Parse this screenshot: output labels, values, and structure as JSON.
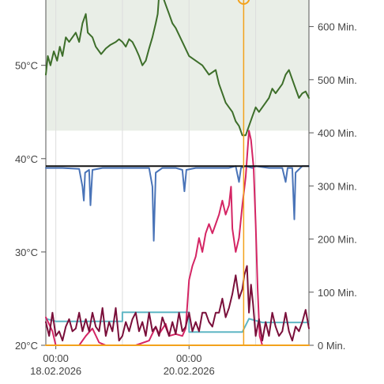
{
  "chart_data": {
    "type": "line",
    "title": "",
    "left_axis": {
      "unit": "°C",
      "range": [
        20,
        57
      ],
      "ticks": [
        {
          "value": 20,
          "label": "20°C"
        },
        {
          "value": 30,
          "label": "30°C"
        },
        {
          "value": 40,
          "label": "40°C"
        },
        {
          "value": 50,
          "label": "50°C"
        }
      ]
    },
    "right_axis": {
      "unit": "Min.",
      "range": [
        0,
        650
      ],
      "ticks": [
        {
          "value": 0,
          "label": "0 Min."
        },
        {
          "value": 100,
          "label": "100 Min."
        },
        {
          "value": 200,
          "label": "200 Min."
        },
        {
          "value": 300,
          "label": "300 Min."
        },
        {
          "value": 400,
          "label": "400 Min."
        },
        {
          "value": 500,
          "label": "500 Min."
        },
        {
          "value": 600,
          "label": "600 Min."
        }
      ]
    },
    "x_axis": {
      "range": [
        -0.15,
        3.8
      ],
      "unit": "days since 18.02.2026 00:00",
      "ticks": [
        {
          "value": 0,
          "label_time": "00:00",
          "label_date": "18.02.2026"
        },
        {
          "value": 2,
          "label_time": "00:00",
          "label_date": "20.02.2026"
        }
      ],
      "minor_gridlines": [
        1,
        3
      ]
    },
    "shaded_band": {
      "axis": "left",
      "from": 43,
      "to": 57,
      "color": "#e9eee7"
    },
    "reference_line": {
      "axis": "left",
      "value": 39.2,
      "color": "#111111"
    },
    "cursor": {
      "x": 2.82,
      "color": "#f3a21c"
    },
    "series": [
      {
        "axis": "left",
        "color": "#3d6e2a",
        "points": [
          [
            -0.15,
            49
          ],
          [
            -0.12,
            51
          ],
          [
            -0.08,
            50
          ],
          [
            -0.03,
            51.5
          ],
          [
            0.02,
            50.5
          ],
          [
            0.06,
            52
          ],
          [
            0.1,
            51
          ],
          [
            0.15,
            53
          ],
          [
            0.2,
            52.5
          ],
          [
            0.25,
            53
          ],
          [
            0.3,
            53.5
          ],
          [
            0.35,
            52.5
          ],
          [
            0.4,
            54.5
          ],
          [
            0.45,
            55.5
          ],
          [
            0.48,
            53.5
          ],
          [
            0.55,
            53
          ],
          [
            0.6,
            52
          ],
          [
            0.68,
            51.2
          ],
          [
            0.75,
            51.8
          ],
          [
            0.82,
            52.2
          ],
          [
            0.9,
            52.5
          ],
          [
            0.95,
            52.8
          ],
          [
            1.0,
            52.5
          ],
          [
            1.05,
            52
          ],
          [
            1.1,
            52.8
          ],
          [
            1.15,
            52.5
          ],
          [
            1.2,
            51.8
          ],
          [
            1.25,
            51
          ],
          [
            1.3,
            50
          ],
          [
            1.35,
            50.5
          ],
          [
            1.4,
            51.8
          ],
          [
            1.45,
            53
          ],
          [
            1.5,
            54.5
          ],
          [
            1.53,
            55.5
          ],
          [
            1.55,
            57.5
          ],
          [
            1.6,
            57.5
          ],
          [
            1.65,
            56.5
          ],
          [
            1.7,
            55.5
          ],
          [
            1.75,
            54.5
          ],
          [
            1.8,
            54
          ],
          [
            1.9,
            52.5
          ],
          [
            2.0,
            51
          ],
          [
            2.1,
            50.5
          ],
          [
            2.2,
            50
          ],
          [
            2.3,
            49
          ],
          [
            2.4,
            49.5
          ],
          [
            2.45,
            48
          ],
          [
            2.5,
            47
          ],
          [
            2.55,
            46
          ],
          [
            2.6,
            45.5
          ],
          [
            2.65,
            45
          ],
          [
            2.7,
            44
          ],
          [
            2.75,
            43.5
          ],
          [
            2.8,
            42.5
          ],
          [
            2.85,
            42.5
          ],
          [
            2.9,
            43.5
          ],
          [
            2.95,
            44.5
          ],
          [
            3.0,
            45.5
          ],
          [
            3.05,
            45
          ],
          [
            3.1,
            45.5
          ],
          [
            3.15,
            46
          ],
          [
            3.2,
            46.5
          ],
          [
            3.25,
            47.5
          ],
          [
            3.3,
            47
          ],
          [
            3.35,
            47.5
          ],
          [
            3.4,
            48
          ],
          [
            3.45,
            49
          ],
          [
            3.5,
            49.5
          ],
          [
            3.55,
            48.5
          ],
          [
            3.6,
            47.5
          ],
          [
            3.65,
            46.5
          ],
          [
            3.7,
            47
          ],
          [
            3.75,
            47.2
          ],
          [
            3.8,
            46.5
          ]
        ]
      },
      {
        "axis": "left",
        "color": "#4a74b8",
        "points": [
          [
            -0.15,
            39
          ],
          [
            0.1,
            39
          ],
          [
            0.35,
            38.9
          ],
          [
            0.4,
            37
          ],
          [
            0.42,
            35.5
          ],
          [
            0.44,
            38.5
          ],
          [
            0.5,
            38.8
          ],
          [
            0.52,
            35
          ],
          [
            0.55,
            38.8
          ],
          [
            0.7,
            39
          ],
          [
            1.0,
            39
          ],
          [
            1.2,
            39
          ],
          [
            1.4,
            39
          ],
          [
            1.45,
            37
          ],
          [
            1.47,
            31.2
          ],
          [
            1.5,
            38.5
          ],
          [
            1.6,
            39
          ],
          [
            1.8,
            39
          ],
          [
            1.9,
            38.8
          ],
          [
            1.93,
            36.5
          ],
          [
            1.96,
            38.8
          ],
          [
            2.1,
            39
          ],
          [
            2.4,
            39
          ],
          [
            2.6,
            39
          ],
          [
            2.7,
            39.2
          ],
          [
            2.75,
            37.5
          ],
          [
            2.78,
            39
          ],
          [
            2.85,
            39.2
          ],
          [
            2.95,
            39
          ],
          [
            3.0,
            39.2
          ],
          [
            3.2,
            39
          ],
          [
            3.4,
            39
          ],
          [
            3.45,
            37.5
          ],
          [
            3.48,
            39
          ],
          [
            3.55,
            39
          ],
          [
            3.58,
            33.5
          ],
          [
            3.6,
            38.5
          ],
          [
            3.7,
            39.2
          ],
          [
            3.8,
            39.2
          ]
        ]
      },
      {
        "axis": "right",
        "color": "#5fb6c4",
        "points": [
          [
            -0.15,
            50
          ],
          [
            0.0,
            45
          ],
          [
            0.3,
            45
          ],
          [
            1.0,
            45
          ],
          [
            1.0,
            62
          ],
          [
            1.5,
            62
          ],
          [
            2.0,
            62
          ],
          [
            2.0,
            25
          ],
          [
            2.3,
            25
          ],
          [
            2.8,
            25
          ],
          [
            2.9,
            50
          ],
          [
            3.1,
            43
          ],
          [
            3.3,
            43
          ],
          [
            3.5,
            43
          ],
          [
            3.8,
            43
          ]
        ]
      },
      {
        "axis": "left",
        "color": "#d42564",
        "points": [
          [
            -0.15,
            23
          ],
          [
            -0.05,
            21.5
          ],
          [
            0.0,
            20
          ],
          [
            0.1,
            20
          ],
          [
            0.2,
            20
          ],
          [
            0.35,
            20
          ],
          [
            0.45,
            21
          ],
          [
            0.55,
            21.8
          ],
          [
            0.65,
            20.3
          ],
          [
            0.75,
            20
          ],
          [
            1.0,
            20
          ],
          [
            1.2,
            20
          ],
          [
            1.4,
            20.5
          ],
          [
            1.5,
            22
          ],
          [
            1.55,
            21.2
          ],
          [
            1.65,
            22.3
          ],
          [
            1.7,
            21
          ],
          [
            1.8,
            21.2
          ],
          [
            1.9,
            21
          ],
          [
            1.95,
            21.8
          ],
          [
            2.0,
            27
          ],
          [
            2.05,
            28.5
          ],
          [
            2.1,
            29.5
          ],
          [
            2.15,
            31.5
          ],
          [
            2.2,
            30
          ],
          [
            2.25,
            32
          ],
          [
            2.3,
            33
          ],
          [
            2.35,
            32
          ],
          [
            2.4,
            33
          ],
          [
            2.45,
            34
          ],
          [
            2.5,
            35.5
          ],
          [
            2.55,
            34
          ],
          [
            2.6,
            35
          ],
          [
            2.63,
            37
          ],
          [
            2.65,
            32.5
          ],
          [
            2.7,
            30
          ],
          [
            2.75,
            31.5
          ],
          [
            2.8,
            35
          ],
          [
            2.85,
            38
          ],
          [
            2.9,
            43
          ],
          [
            2.93,
            42
          ],
          [
            2.97,
            39
          ],
          [
            3.0,
            33
          ],
          [
            3.03,
            26
          ],
          [
            3.06,
            21
          ],
          [
            3.1,
            20
          ],
          [
            3.3,
            20
          ],
          [
            3.5,
            20
          ],
          [
            3.8,
            20
          ]
        ]
      },
      {
        "axis": "left",
        "color": "#7a0f3a",
        "points": [
          [
            -0.15,
            22.5
          ],
          [
            -0.1,
            21
          ],
          [
            -0.05,
            23.5
          ],
          [
            0.0,
            21
          ],
          [
            0.05,
            21.5
          ],
          [
            0.1,
            20.5
          ],
          [
            0.15,
            22
          ],
          [
            0.2,
            22.8
          ],
          [
            0.25,
            21.5
          ],
          [
            0.3,
            21.8
          ],
          [
            0.35,
            23.5
          ],
          [
            0.4,
            21.5
          ],
          [
            0.45,
            22.8
          ],
          [
            0.5,
            21.5
          ],
          [
            0.55,
            23.5
          ],
          [
            0.6,
            22
          ],
          [
            0.65,
            21.5
          ],
          [
            0.7,
            24
          ],
          [
            0.75,
            21
          ],
          [
            0.8,
            22.5
          ],
          [
            0.85,
            21.5
          ],
          [
            0.9,
            24
          ],
          [
            0.95,
            20.5
          ],
          [
            1.0,
            21
          ],
          [
            1.05,
            22.5
          ],
          [
            1.1,
            21.5
          ],
          [
            1.15,
            22.8
          ],
          [
            1.2,
            23.5
          ],
          [
            1.25,
            21.5
          ],
          [
            1.3,
            22.5
          ],
          [
            1.35,
            21
          ],
          [
            1.4,
            23.5
          ],
          [
            1.45,
            21.5
          ],
          [
            1.5,
            22
          ],
          [
            1.55,
            21
          ],
          [
            1.6,
            23
          ],
          [
            1.65,
            22
          ],
          [
            1.7,
            21
          ],
          [
            1.75,
            22.5
          ],
          [
            1.8,
            21.2
          ],
          [
            1.85,
            23.5
          ],
          [
            1.9,
            21.5
          ],
          [
            1.95,
            22
          ],
          [
            2.0,
            23.5
          ],
          [
            2.05,
            21.5
          ],
          [
            2.1,
            22.5
          ],
          [
            2.15,
            21.5
          ],
          [
            2.2,
            23.5
          ],
          [
            2.25,
            23.5
          ],
          [
            2.3,
            22.5
          ],
          [
            2.35,
            22
          ],
          [
            2.4,
            23.5
          ],
          [
            2.45,
            23.5
          ],
          [
            2.5,
            25
          ],
          [
            2.55,
            23
          ],
          [
            2.6,
            24
          ],
          [
            2.65,
            25.5
          ],
          [
            2.7,
            27.5
          ],
          [
            2.75,
            25
          ],
          [
            2.8,
            26
          ],
          [
            2.83,
            27.5
          ],
          [
            2.87,
            28.5
          ],
          [
            2.9,
            23.5
          ],
          [
            2.93,
            26.5
          ],
          [
            2.96,
            24.5
          ],
          [
            3.0,
            21
          ],
          [
            3.05,
            22.8
          ],
          [
            3.1,
            20.5
          ],
          [
            3.15,
            22.5
          ],
          [
            3.2,
            21
          ],
          [
            3.25,
            23.5
          ],
          [
            3.3,
            22
          ],
          [
            3.35,
            21
          ],
          [
            3.4,
            21.5
          ],
          [
            3.45,
            23.5
          ],
          [
            3.5,
            21.5
          ],
          [
            3.55,
            20.5
          ],
          [
            3.6,
            22
          ],
          [
            3.65,
            21.5
          ],
          [
            3.7,
            22.5
          ],
          [
            3.75,
            23.8
          ],
          [
            3.8,
            21.8
          ]
        ]
      },
      {
        "axis": "left",
        "color": "#f3a21c",
        "points": [
          [
            -0.15,
            20
          ],
          [
            3.8,
            20
          ]
        ]
      }
    ]
  }
}
